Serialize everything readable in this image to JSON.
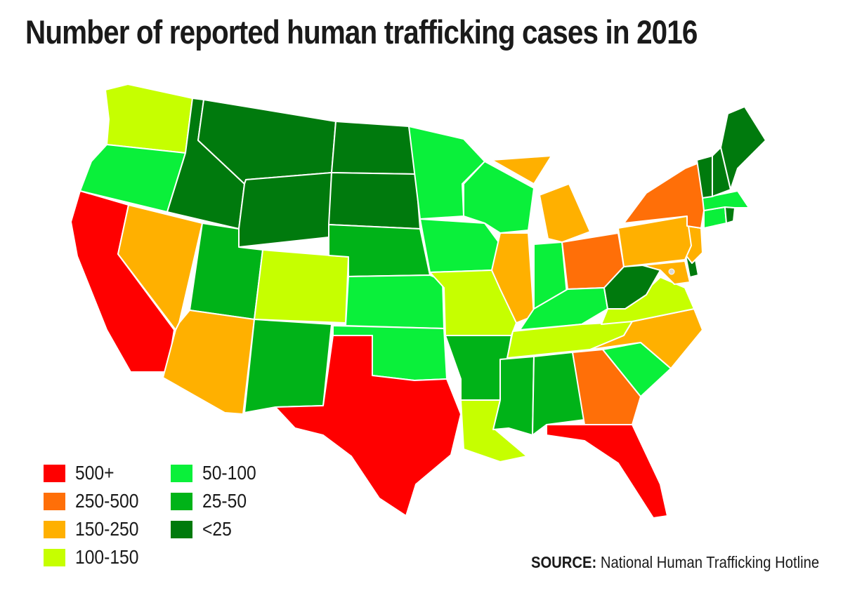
{
  "title": "Number of reported human trafficking cases in 2016",
  "source": {
    "label": "SOURCE:",
    "text": " National Human Trafficking Hotline"
  },
  "legend": [
    {
      "label": "500+",
      "color": "#ff0000"
    },
    {
      "label": "250-500",
      "color": "#ff6f08"
    },
    {
      "label": "150-250",
      "color": "#ffb000"
    },
    {
      "label": "100-150",
      "color": "#c6ff00"
    },
    {
      "label": "50-100",
      "color": "#0af03a"
    },
    {
      "label": "25-50",
      "color": "#00b318"
    },
    {
      "label": "<25",
      "color": "#007a0d"
    }
  ],
  "states": {
    "WA": "100-150",
    "OR": "50-100",
    "CA": "500+",
    "NV": "150-250",
    "ID": "<25",
    "MT": "<25",
    "WY": "<25",
    "UT": "25-50",
    "AZ": "150-250",
    "CO": "100-150",
    "NM": "25-50",
    "ND": "<25",
    "SD": "<25",
    "NE": "25-50",
    "KS": "50-100",
    "OK": "50-100",
    "TX": "500+",
    "MN": "50-100",
    "IA": "50-100",
    "MO": "100-150",
    "AR": "25-50",
    "LA": "100-150",
    "WI": "50-100",
    "IL": "150-250",
    "MI": "150-250",
    "IN": "50-100",
    "OH": "250-500",
    "KY": "50-100",
    "TN": "100-150",
    "MS": "25-50",
    "AL": "25-50",
    "GA": "250-500",
    "FL": "500+",
    "SC": "50-100",
    "NC": "150-250",
    "VA": "100-150",
    "WV": "<25",
    "MD": "150-250",
    "DE": "<25",
    "NJ": "150-250",
    "PA": "150-250",
    "NY": "250-500",
    "CT": "50-100",
    "RI": "<25",
    "MA": "50-100",
    "VT": "<25",
    "NH": "<25",
    "ME": "<25"
  }
}
